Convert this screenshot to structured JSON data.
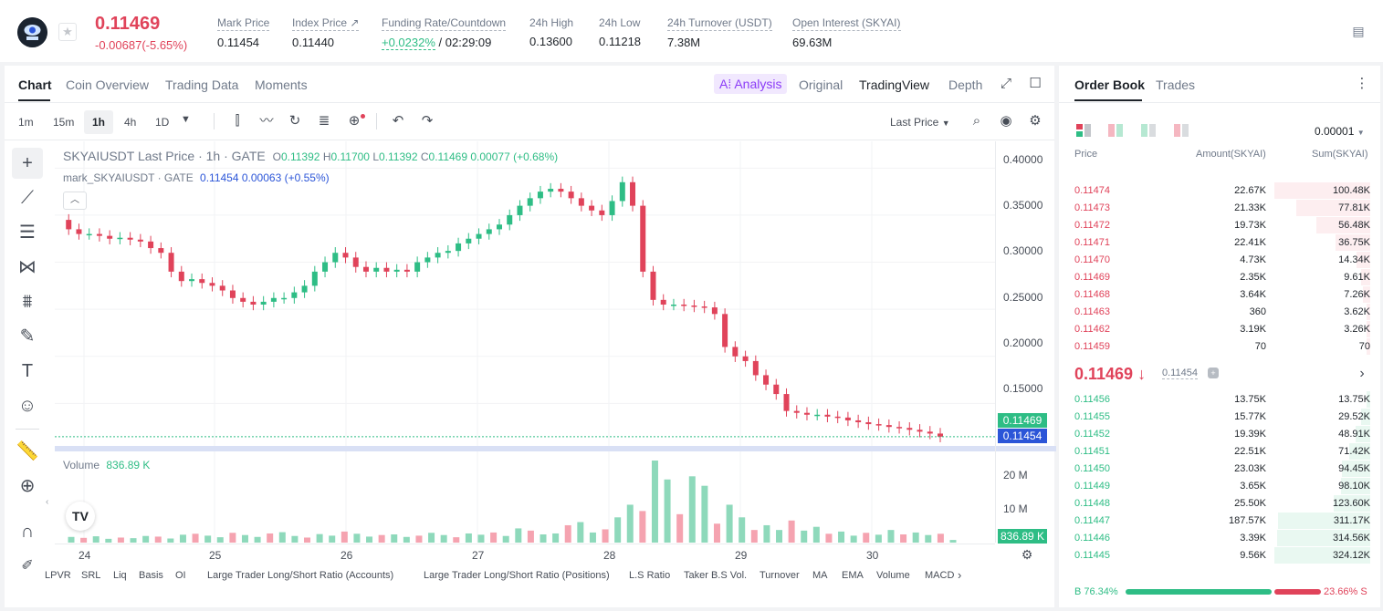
{
  "ticker": {
    "price": "0.11469",
    "change": "-0.00687(-5.65%)",
    "stats": [
      {
        "label": "Mark Price",
        "value": "0.11454"
      },
      {
        "label": "Index Price ↗",
        "value": "0.11440"
      },
      {
        "label": "Funding Rate/Countdown",
        "value_rate": "+0.0232%",
        "value_time": "/ 02:29:09"
      },
      {
        "label": "24h High",
        "value": "0.13600"
      },
      {
        "label": "24h Low",
        "value": "0.11218"
      },
      {
        "label": "24h Turnover (USDT)",
        "value": "7.38M"
      },
      {
        "label": "Open Interest (SKYAI)",
        "value": "69.63M"
      }
    ]
  },
  "chart_tabs": [
    "Chart",
    "Coin Overview",
    "Trading Data",
    "Moments"
  ],
  "view_tabs": {
    "analysis": "A⁞ Analysis",
    "original": "Original",
    "tradingview": "TradingView",
    "depth": "Depth"
  },
  "intervals": [
    "1m",
    "15m",
    "1h",
    "4h",
    "1D"
  ],
  "price_mode": "Last Price",
  "legend": {
    "main": "SKYAIUSDT Last Price · 1h · GATE",
    "ohlc": {
      "o_lbl": "O",
      "o": "0.11392",
      "h_lbl": "H",
      "h": "0.11700",
      "l_lbl": "L",
      "l": "0.11392",
      "c_lbl": "C",
      "c": "0.11469",
      "chg": "0.00077 (+0.68%)"
    },
    "mark": "mark_SKYAIUSDT · GATE",
    "mark_val": "0.11454 0.00063 (+0.55%)",
    "volume": "Volume",
    "volume_val": "836.89 K"
  },
  "price_axis": [
    "0.40000",
    "0.35000",
    "0.30000",
    "0.25000",
    "0.20000",
    "0.15000"
  ],
  "last_price_tag": "0.11469",
  "mark_price_tag": "0.11454",
  "volume_axis": [
    "20 M",
    "10 M"
  ],
  "volume_tag": "836.89 K",
  "date_axis": [
    "24",
    "25",
    "26",
    "27",
    "28",
    "29",
    "30"
  ],
  "indicators": [
    "LPVR",
    "SRL",
    "Liq",
    "Basis",
    "OI",
    "Large Trader Long/Short Ratio (Accounts)",
    "Large Trader Long/Short Ratio (Positions)",
    "L.S Ratio",
    "Taker B.S Vol.",
    "Turnover",
    "MA",
    "EMA",
    "Volume",
    "MACD"
  ],
  "orderbook": {
    "tabs": [
      "Order Book",
      "Trades"
    ],
    "precision": "0.00001",
    "headers": [
      "Price",
      "Amount(SKYAI)",
      "Sum(SKYAI)"
    ],
    "asks": [
      {
        "price": "0.11474",
        "amount": "22.67K",
        "sum": "100.48K"
      },
      {
        "price": "0.11473",
        "amount": "21.33K",
        "sum": "77.81K"
      },
      {
        "price": "0.11472",
        "amount": "19.73K",
        "sum": "56.48K"
      },
      {
        "price": "0.11471",
        "amount": "22.41K",
        "sum": "36.75K"
      },
      {
        "price": "0.11470",
        "amount": "4.73K",
        "sum": "14.34K"
      },
      {
        "price": "0.11469",
        "amount": "2.35K",
        "sum": "9.61K"
      },
      {
        "price": "0.11468",
        "amount": "3.64K",
        "sum": "7.26K"
      },
      {
        "price": "0.11463",
        "amount": "360",
        "sum": "3.62K"
      },
      {
        "price": "0.11462",
        "amount": "3.19K",
        "sum": "3.26K"
      },
      {
        "price": "0.11459",
        "amount": "70",
        "sum": "70"
      }
    ],
    "mid_price": "0.11469 ↓",
    "mid_mark": "0.11454",
    "bids": [
      {
        "price": "0.11456",
        "amount": "13.75K",
        "sum": "13.75K"
      },
      {
        "price": "0.11455",
        "amount": "15.77K",
        "sum": "29.52K"
      },
      {
        "price": "0.11452",
        "amount": "19.39K",
        "sum": "48.91K"
      },
      {
        "price": "0.11451",
        "amount": "22.51K",
        "sum": "71.42K"
      },
      {
        "price": "0.11450",
        "amount": "23.03K",
        "sum": "94.45K"
      },
      {
        "price": "0.11449",
        "amount": "3.65K",
        "sum": "98.10K"
      },
      {
        "price": "0.11448",
        "amount": "25.50K",
        "sum": "123.60K"
      },
      {
        "price": "0.11447",
        "amount": "187.57K",
        "sum": "311.17K"
      },
      {
        "price": "0.11446",
        "amount": "3.39K",
        "sum": "314.56K"
      },
      {
        "price": "0.11445",
        "amount": "9.56K",
        "sum": "324.12K"
      }
    ],
    "buy_ratio_label": "B 76.34%",
    "sell_ratio_label": "23.66% S",
    "buy_ratio": 0.7634
  },
  "colors": {
    "up": "#2ebd85",
    "down": "#e0435a",
    "accent": "#8b3cf7",
    "mark": "#2b55d8"
  },
  "chart_data": {
    "type": "candlestick",
    "ylim": [
      0.1,
      0.41
    ],
    "x_categories": [
      "24",
      "25",
      "26",
      "27",
      "28",
      "29",
      "30"
    ],
    "close_path": [
      0.345,
      0.335,
      0.33,
      0.33,
      0.328,
      0.325,
      0.326,
      0.324,
      0.322,
      0.315,
      0.31,
      0.29,
      0.28,
      0.282,
      0.278,
      0.275,
      0.27,
      0.262,
      0.258,
      0.255,
      0.258,
      0.262,
      0.262,
      0.268,
      0.275,
      0.29,
      0.3,
      0.31,
      0.305,
      0.295,
      0.29,
      0.294,
      0.29,
      0.292,
      0.29,
      0.3,
      0.305,
      0.31,
      0.312,
      0.32,
      0.325,
      0.33,
      0.335,
      0.34,
      0.35,
      0.36,
      0.368,
      0.375,
      0.378,
      0.375,
      0.368,
      0.36,
      0.355,
      0.35,
      0.365,
      0.385,
      0.36,
      0.29,
      0.26,
      0.255,
      0.255,
      0.254,
      0.253,
      0.252,
      0.245,
      0.21,
      0.2,
      0.195,
      0.18,
      0.17,
      0.16,
      0.142,
      0.14,
      0.138,
      0.138,
      0.136,
      0.135,
      0.132,
      0.13,
      0.128,
      0.127,
      0.125,
      0.124,
      0.122,
      0.12,
      0.118,
      0.1147
    ],
    "volume_bars_m": [
      1.8,
      1.5,
      2,
      1.2,
      1.6,
      1.4,
      2.1,
      1.9,
      1.3,
      2.5,
      2.8,
      2.2,
      1.7,
      3.1,
      2.4,
      1.8,
      2.9,
      3.3,
      2.1,
      1.6,
      2.7,
      2.2,
      3.5,
      2.8,
      1.9,
      2.4,
      2.6,
      1.8,
      2.2,
      3.1,
      2.4,
      1.7,
      2.9,
      2.5,
      3.2,
      2.1,
      4.5,
      3.8,
      2.6,
      2.9,
      5.5,
      6.5,
      3.2,
      4.2,
      8,
      12,
      10,
      26,
      20,
      9,
      21,
      18,
      6,
      12,
      8,
      4,
      5.5,
      4,
      7,
      3.8,
      5,
      2.8,
      3.5,
      2.2,
      3.1,
      2.5,
      4,
      2.6,
      3.2,
      2.4,
      2.8,
      0.84
    ]
  }
}
